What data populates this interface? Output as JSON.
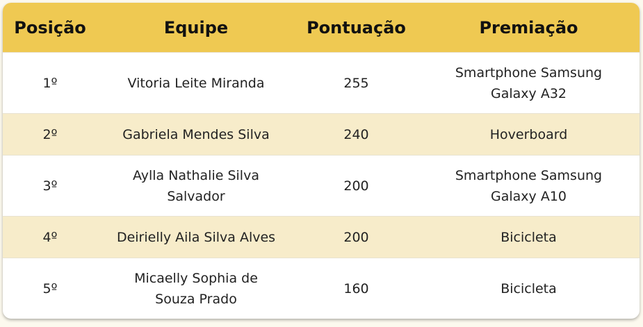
{
  "headers": {
    "position": "Posição",
    "team": "Equipe",
    "score": "Pontuação",
    "prize": "Premiação"
  },
  "rows": [
    {
      "position": "1º",
      "team": "Vitoria Leite Miranda",
      "score": "255",
      "prize": "Smartphone Samsung Galaxy A32"
    },
    {
      "position": "2º",
      "team": "Gabriela Mendes Silva",
      "score": "240",
      "prize": "Hoverboard"
    },
    {
      "position": "3º",
      "team": "Aylla Nathalie Silva Salvador",
      "score": "200",
      "prize": "Smartphone Samsung Galaxy A10"
    },
    {
      "position": "4º",
      "team": "Deirielly Aila Silva Alves",
      "score": "200",
      "prize": "Bicicleta"
    },
    {
      "position": "5º",
      "team": "Micaelly Sophia de Souza Prado",
      "score": "160",
      "prize": "Bicicleta"
    }
  ],
  "colors": {
    "header": "#efc952",
    "alt_row": "#f7ecca"
  }
}
